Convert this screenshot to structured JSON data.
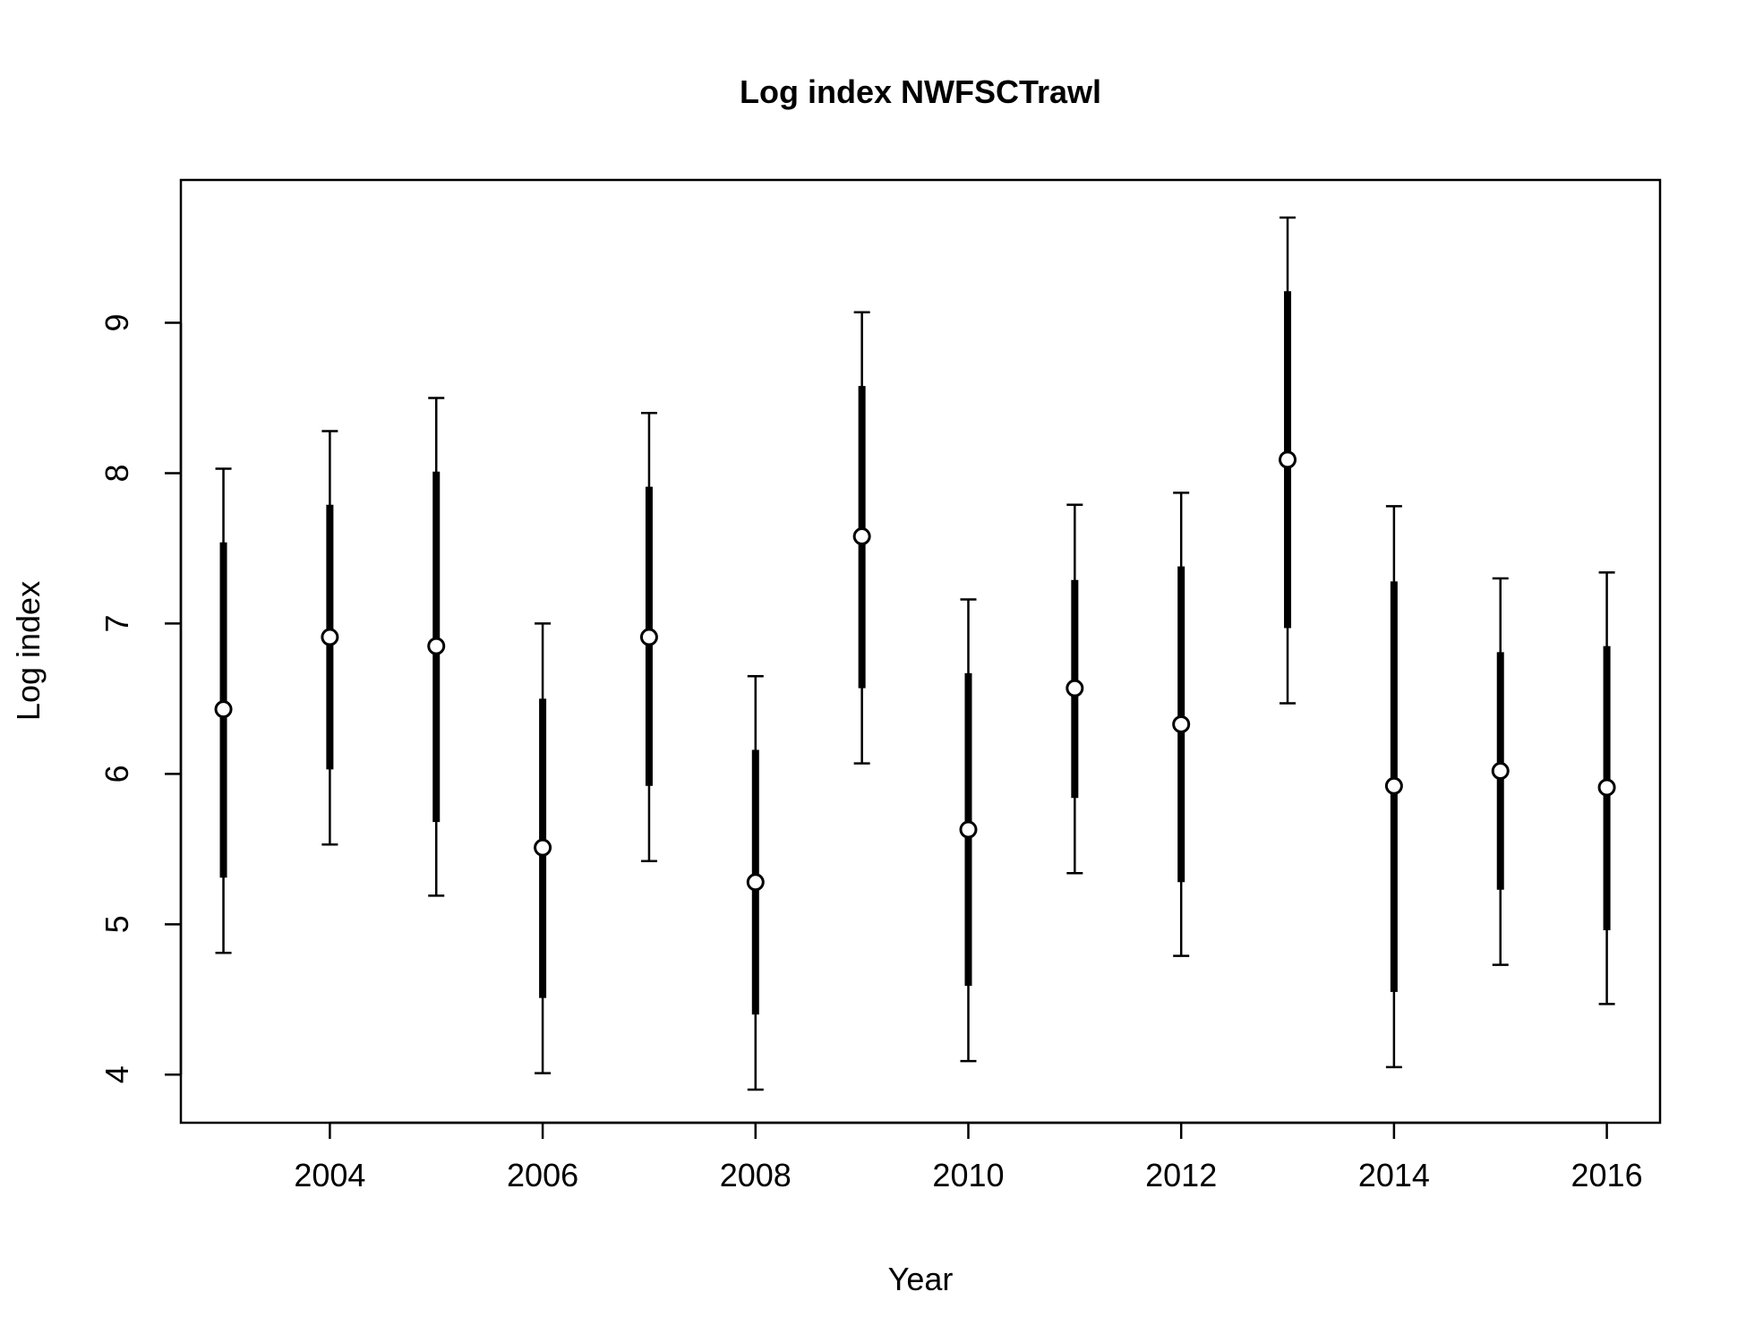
{
  "chart_data": {
    "type": "scatter",
    "title": "Log index NWFSCTrawl",
    "xlabel": "Year",
    "ylabel": "Log index",
    "xlim": [
      2002.6,
      2016.5
    ],
    "ylim": [
      3.68,
      9.95
    ],
    "x_ticks": [
      2004,
      2006,
      2008,
      2010,
      2012,
      2014,
      2016
    ],
    "y_ticks": [
      4,
      5,
      6,
      7,
      8,
      9
    ],
    "grid": false,
    "legend": "none",
    "colors": {
      "mark": "#000000",
      "point_fill": "#ffffff"
    },
    "points": [
      {
        "x": 2003,
        "y": 6.43,
        "inner_low": 5.31,
        "inner_high": 7.54,
        "outer_low": 4.81,
        "outer_high": 8.03
      },
      {
        "x": 2004,
        "y": 6.91,
        "inner_low": 6.03,
        "inner_high": 7.79,
        "outer_low": 5.53,
        "outer_high": 8.28
      },
      {
        "x": 2005,
        "y": 6.85,
        "inner_low": 5.68,
        "inner_high": 8.01,
        "outer_low": 5.19,
        "outer_high": 8.5
      },
      {
        "x": 2006,
        "y": 5.51,
        "inner_low": 4.51,
        "inner_high": 6.5,
        "outer_low": 4.01,
        "outer_high": 7.0
      },
      {
        "x": 2007,
        "y": 6.91,
        "inner_low": 5.92,
        "inner_high": 7.91,
        "outer_low": 5.42,
        "outer_high": 8.4
      },
      {
        "x": 2008,
        "y": 5.28,
        "inner_low": 4.4,
        "inner_high": 6.16,
        "outer_low": 3.9,
        "outer_high": 6.65
      },
      {
        "x": 2009,
        "y": 7.58,
        "inner_low": 6.57,
        "inner_high": 8.58,
        "outer_low": 6.07,
        "outer_high": 9.07
      },
      {
        "x": 2010,
        "y": 5.63,
        "inner_low": 4.59,
        "inner_high": 6.67,
        "outer_low": 4.09,
        "outer_high": 7.16
      },
      {
        "x": 2011,
        "y": 6.57,
        "inner_low": 5.84,
        "inner_high": 7.29,
        "outer_low": 5.34,
        "outer_high": 7.79
      },
      {
        "x": 2012,
        "y": 6.33,
        "inner_low": 5.28,
        "inner_high": 7.38,
        "outer_low": 4.79,
        "outer_high": 7.87
      },
      {
        "x": 2013,
        "y": 8.09,
        "inner_low": 6.97,
        "inner_high": 9.21,
        "outer_low": 6.47,
        "outer_high": 9.7
      },
      {
        "x": 2014,
        "y": 5.92,
        "inner_low": 4.55,
        "inner_high": 7.28,
        "outer_low": 4.05,
        "outer_high": 7.78
      },
      {
        "x": 2015,
        "y": 6.02,
        "inner_low": 5.23,
        "inner_high": 6.81,
        "outer_low": 4.73,
        "outer_high": 7.3
      },
      {
        "x": 2016,
        "y": 5.91,
        "inner_low": 4.96,
        "inner_high": 6.85,
        "outer_low": 4.47,
        "outer_high": 7.34
      }
    ]
  }
}
